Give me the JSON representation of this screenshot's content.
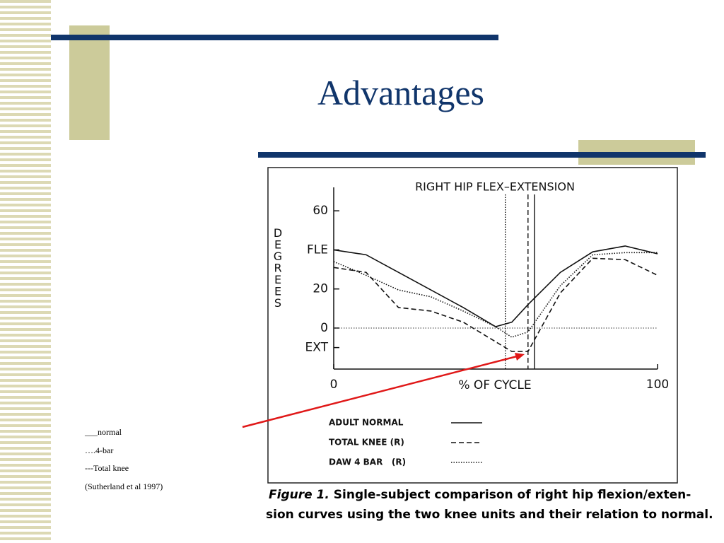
{
  "slide": {
    "title": "Advantages",
    "notes": [
      "___normal",
      "….4-bar",
      "---Total knee",
      "(Sutherland et al 1997)"
    ]
  },
  "chart_data": {
    "type": "line",
    "title": "RIGHT HIP FLEX–EXTENSION",
    "ylabel": "DEGREES",
    "xlabel": "% OF CYCLE",
    "x": [
      0,
      10,
      20,
      30,
      40,
      50,
      55,
      60,
      70,
      80,
      90,
      100
    ],
    "series": [
      {
        "name": "ADULT NORMAL",
        "color": "#111111",
        "dash": "solid",
        "toe_off": 62,
        "values": [
          40,
          37.5,
          28.5,
          19.5,
          10.5,
          0.7,
          3,
          12,
          28.5,
          39,
          42,
          38
        ]
      },
      {
        "name": "TOTAL KNEE (R)",
        "color": "#111111",
        "dash": "dashed",
        "toe_off": 60,
        "values": [
          31,
          28.5,
          10.5,
          8.7,
          3,
          -7,
          -12,
          -12,
          18,
          35.7,
          35,
          27
        ]
      },
      {
        "name": "DAW 4 BAR   (R)",
        "color": "#111111",
        "dash": "dotted",
        "toe_off": 53,
        "values": [
          34,
          27,
          19.5,
          16,
          8.7,
          0.7,
          -4.7,
          -2,
          21.7,
          37.5,
          38.6,
          38.6
        ]
      }
    ],
    "xlim": [
      0,
      100
    ],
    "ylim": [
      -21,
      72
    ],
    "xticks": [
      0,
      100
    ],
    "yticks": [
      60,
      {
        "value": 40,
        "label": "FLE"
      },
      20,
      0,
      {
        "value": -10,
        "label": "EXT"
      }
    ],
    "zero_line": true,
    "caption_label": "Figure 1.",
    "caption": [
      "Single-subject comparison of right hip flexion/exten-",
      "sion curves using the two knee units and their relation to normal."
    ]
  }
}
